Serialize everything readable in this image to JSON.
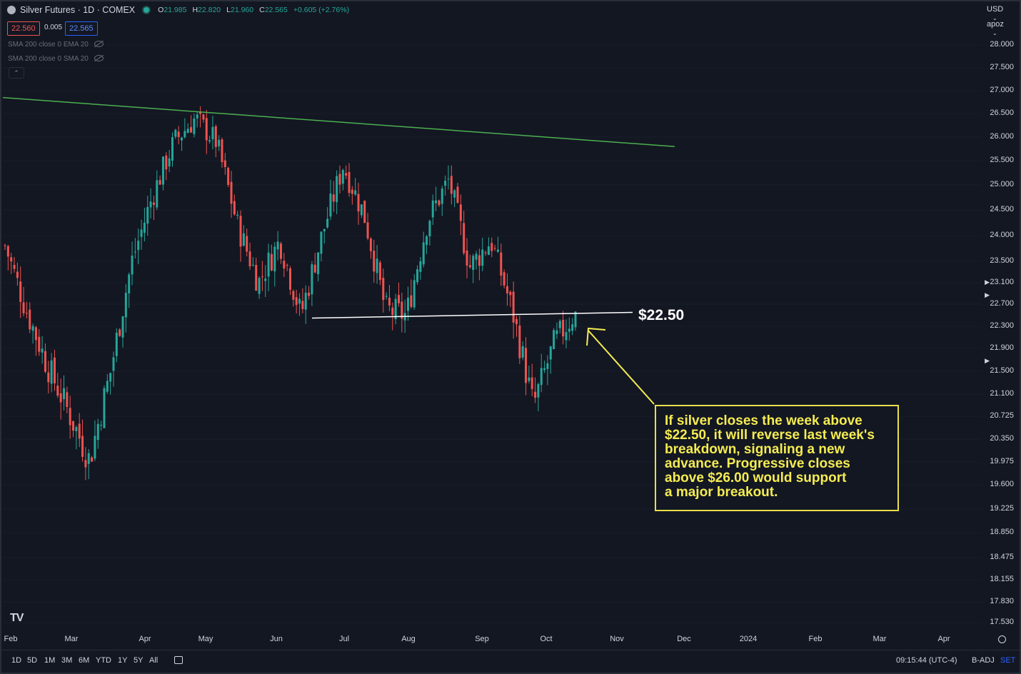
{
  "header": {
    "symbol_title": "Silver Futures · 1D · COMEX",
    "ohlc": {
      "O": "21.985",
      "H": "22.820",
      "L": "21.960",
      "C": "22.565",
      "change": "+0.605 (+2.76%)"
    },
    "bid": "22.560",
    "spread": "0.005",
    "ask": "22.565",
    "indicators": [
      "SMA 200 close 0 EMA 20",
      "SMA 200 close 0 SMA 20"
    ],
    "collapse_icon": "chevron-up-icon"
  },
  "toolbar_right": {
    "currency": "USD",
    "scale": "apoz"
  },
  "colors": {
    "up": "#26a69a",
    "down": "#ef5350",
    "trendline": "#4caf50",
    "support": "#ffffff",
    "note": "#f5ec52",
    "background": "#131722"
  },
  "chart_data": {
    "type": "candlestick",
    "title": "Silver Futures · 1D · COMEX",
    "ylim": [
      17.3,
      28.2
    ],
    "y_ticks": [
      "28.000",
      "27.500",
      "27.000",
      "26.500",
      "26.000",
      "25.500",
      "25.000",
      "24.500",
      "24.000",
      "23.500",
      "23.100",
      "22.700",
      "22.300",
      "21.900",
      "21.500",
      "21.100",
      "20.725",
      "20.350",
      "19.975",
      "19.600",
      "19.225",
      "18.850",
      "18.475",
      "18.155",
      "17.830",
      "17.530"
    ],
    "x_ticks": [
      "Feb",
      "Mar",
      "Apr",
      "May",
      "Jun",
      "Jul",
      "Aug",
      "Sep",
      "Oct",
      "Nov",
      "Dec",
      "2024",
      "Feb",
      "Mar",
      "Apr"
    ],
    "price_path": [
      [
        "Feb",
        23.8
      ],
      [
        "Feb",
        22.6
      ],
      [
        "Feb",
        21.6
      ],
      [
        "Mar",
        20.8
      ],
      [
        "Mar",
        20.0
      ],
      [
        "Mar",
        21.5
      ],
      [
        "Apr",
        23.5
      ],
      [
        "Apr",
        24.8
      ],
      [
        "Apr",
        25.9
      ],
      [
        "May",
        26.4
      ],
      [
        "May",
        25.9
      ],
      [
        "May",
        24.2
      ],
      [
        "Jun",
        23.1
      ],
      [
        "Jun",
        23.9
      ],
      [
        "Jun",
        22.5
      ],
      [
        "Jul",
        24.0
      ],
      [
        "Jul",
        25.4
      ],
      [
        "Aug",
        24.4
      ],
      [
        "Aug",
        22.6
      ],
      [
        "Aug",
        22.5
      ],
      [
        "Sep",
        24.3
      ],
      [
        "Sep",
        25.1
      ],
      [
        "Sep",
        23.4
      ],
      [
        "Oct",
        23.9
      ],
      [
        "Oct",
        22.6
      ],
      [
        "Oct",
        20.9
      ],
      [
        "Oct",
        22.0
      ],
      [
        "Oct",
        22.565
      ]
    ],
    "trendline": {
      "from": [
        "Feb",
        26.85
      ],
      "to": [
        "Dec",
        25.8
      ]
    },
    "support_level": 22.5,
    "support_label": "$22.50",
    "last_price": 22.565
  },
  "annotation": {
    "text": "If silver closes the week above\n$22.50, it will reverse last week's\nbreakdown, signaling a new\nadvance. Progressive closes\nabove $26.00 would support\na major breakout."
  },
  "logo": "TV",
  "bottom_bar": {
    "ranges": [
      "1D",
      "5D",
      "1M",
      "3M",
      "6M",
      "YTD",
      "1Y",
      "5Y",
      "All"
    ],
    "calendar_icon": "calendar-icon",
    "time": "09:15:44 (UTC-4)",
    "badj": "B-ADJ",
    "set": "SET"
  }
}
